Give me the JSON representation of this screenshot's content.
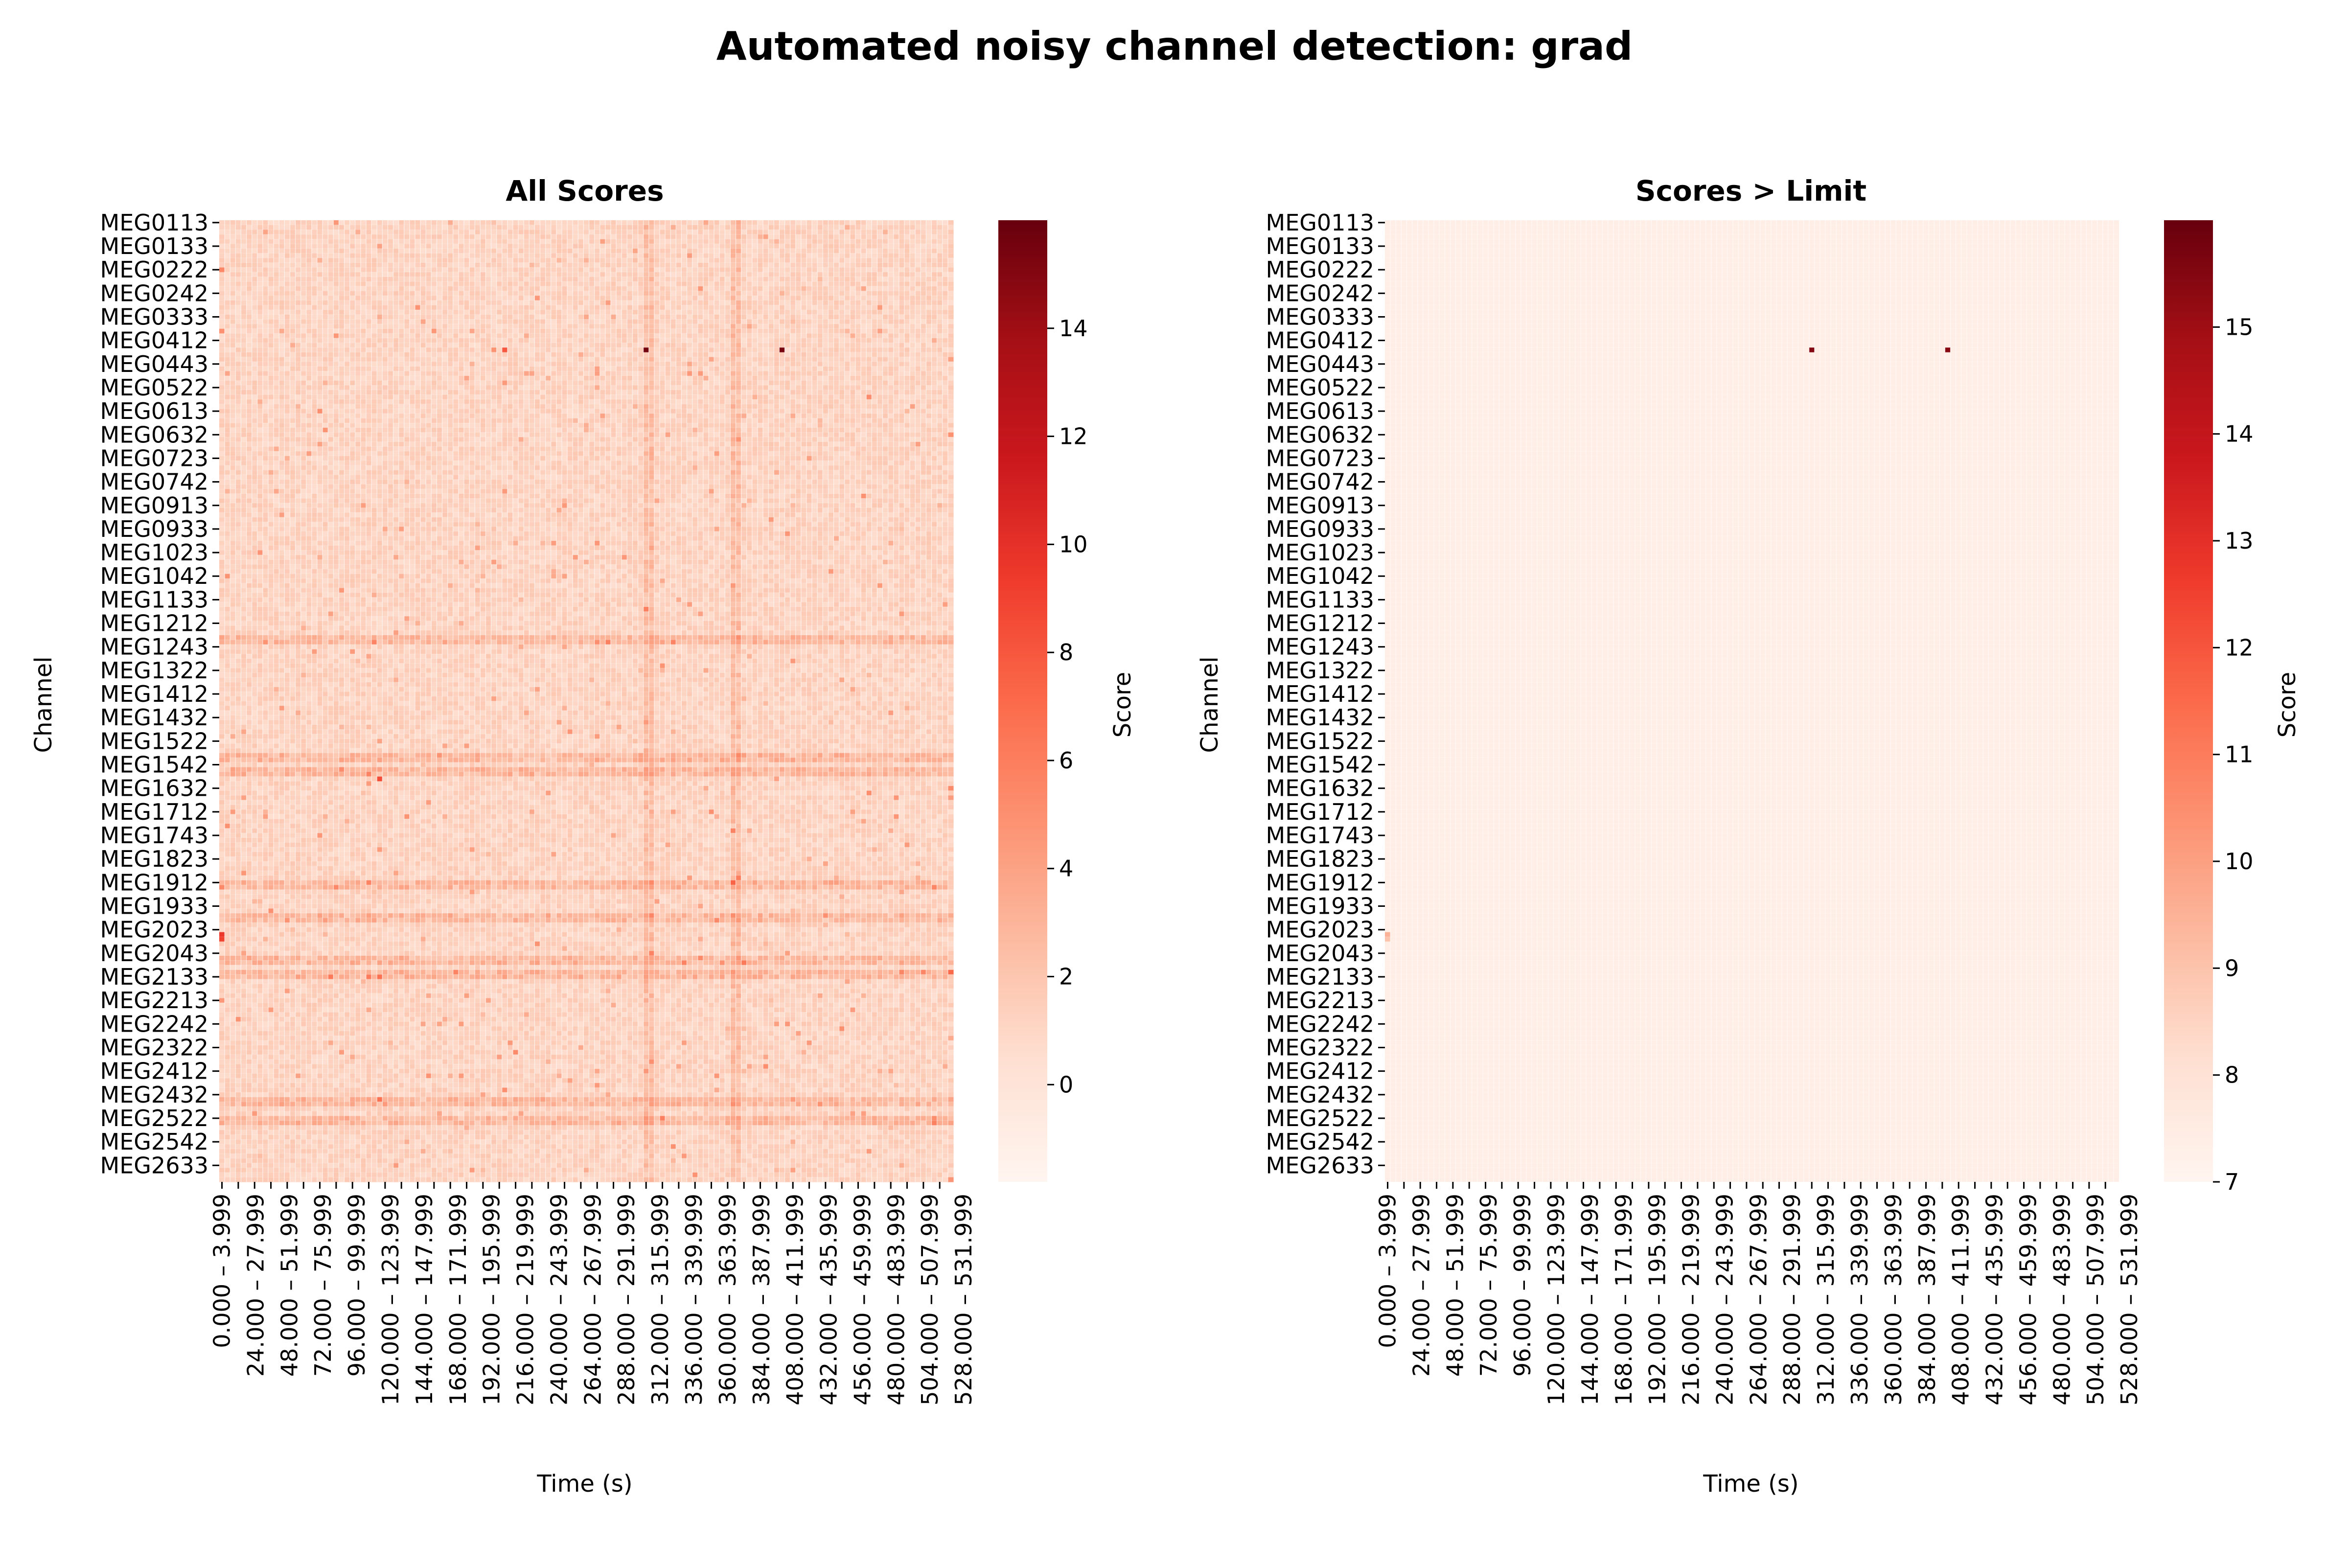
{
  "figure": {
    "title": "Automated noisy channel detection: grad"
  },
  "chart_data": [
    {
      "type": "heatmap",
      "title": "All Scores",
      "xlabel": "Time (s)",
      "ylabel": "Channel",
      "colorbar_label": "Score",
      "colormap": "Reds",
      "vmin": -1.8,
      "vmax": 16,
      "colorbar_ticks": [
        0,
        2,
        4,
        6,
        8,
        10,
        12,
        14
      ],
      "grid": false,
      "n_rows": 204,
      "n_cols": 135,
      "ytick_labels": [
        "MEG0113",
        "MEG0133",
        "MEG0222",
        "MEG0242",
        "MEG0333",
        "MEG0412",
        "MEG0443",
        "MEG0522",
        "MEG0613",
        "MEG0632",
        "MEG0723",
        "MEG0742",
        "MEG0913",
        "MEG0933",
        "MEG1023",
        "MEG1042",
        "MEG1133",
        "MEG1212",
        "MEG1243",
        "MEG1322",
        "MEG1412",
        "MEG1432",
        "MEG1522",
        "MEG1542",
        "MEG1632",
        "MEG1712",
        "MEG1743",
        "MEG1823",
        "MEG1912",
        "MEG1933",
        "MEG2023",
        "MEG2043",
        "MEG2133",
        "MEG2213",
        "MEG2242",
        "MEG2322",
        "MEG2412",
        "MEG2432",
        "MEG2522",
        "MEG2542",
        "MEG2633"
      ],
      "xtick_labels": [
        "0.000 – 3.999",
        "24.000 – 27.999",
        "48.000 – 51.999",
        "72.000 – 75.999",
        "96.000 – 99.999",
        "120.000 – 123.999",
        "144.000 – 147.999",
        "168.000 – 171.999",
        "192.000 – 195.999",
        "216.000 – 219.999",
        "240.000 – 243.999",
        "264.000 – 267.999",
        "288.000 – 291.999",
        "312.000 – 315.999",
        "336.000 – 339.999",
        "360.000 – 363.999",
        "384.000 – 387.999",
        "408.000 – 411.999",
        "432.000 – 435.999",
        "456.000 – 459.999",
        "480.000 – 483.999",
        "504.000 – 507.999",
        "528.000 – 531.999"
      ],
      "background_level": 1.2,
      "hot_cells": [
        {
          "row": 27,
          "col": 78,
          "value": 15.5
        },
        {
          "row": 27,
          "col": 103,
          "value": 15.4
        },
        {
          "row": 27,
          "col": 52,
          "value": 8.0
        },
        {
          "row": 151,
          "col": 0,
          "value": 9.5
        },
        {
          "row": 152,
          "col": 0,
          "value": 9.0
        },
        {
          "row": 10,
          "col": 0,
          "value": 5.5
        },
        {
          "row": 23,
          "col": 0,
          "value": 5.0
        },
        {
          "row": 118,
          "col": 29,
          "value": 8.5
        },
        {
          "row": 32,
          "col": 86,
          "value": 4.5
        },
        {
          "row": 60,
          "col": 63,
          "value": 4.5
        },
        {
          "row": 75,
          "col": 63,
          "value": 4.0
        }
      ],
      "busy_rows": [
        88,
        89,
        113,
        114,
        116,
        117,
        140,
        141,
        147,
        148,
        156,
        157,
        159,
        160,
        186,
        187,
        190,
        191
      ],
      "busy_cols": [
        78,
        79,
        94,
        95
      ]
    },
    {
      "type": "heatmap",
      "title": "Scores > Limit",
      "xlabel": "Time (s)",
      "ylabel": "Channel",
      "colorbar_label": "Score",
      "colormap": "Reds",
      "vmin": 7,
      "vmax": 16,
      "colorbar_ticks": [
        7,
        8,
        9,
        10,
        11,
        12,
        13,
        14,
        15
      ],
      "grid": false,
      "n_rows": 204,
      "n_cols": 135,
      "ytick_labels": [
        "MEG0113",
        "MEG0133",
        "MEG0222",
        "MEG0242",
        "MEG0333",
        "MEG0412",
        "MEG0443",
        "MEG0522",
        "MEG0613",
        "MEG0632",
        "MEG0723",
        "MEG0742",
        "MEG0913",
        "MEG0933",
        "MEG1023",
        "MEG1042",
        "MEG1133",
        "MEG1212",
        "MEG1243",
        "MEG1322",
        "MEG1412",
        "MEG1432",
        "MEG1522",
        "MEG1542",
        "MEG1632",
        "MEG1712",
        "MEG1743",
        "MEG1823",
        "MEG1912",
        "MEG1933",
        "MEG2023",
        "MEG2043",
        "MEG2133",
        "MEG2213",
        "MEG2242",
        "MEG2322",
        "MEG2412",
        "MEG2432",
        "MEG2522",
        "MEG2542",
        "MEG2633"
      ],
      "xtick_labels": [
        "0.000 – 3.999",
        "24.000 – 27.999",
        "48.000 – 51.999",
        "72.000 – 75.999",
        "96.000 – 99.999",
        "120.000 – 123.999",
        "144.000 – 147.999",
        "168.000 – 171.999",
        "192.000 – 195.999",
        "216.000 – 219.999",
        "240.000 – 243.999",
        "264.000 – 267.999",
        "288.000 – 291.999",
        "312.000 – 315.999",
        "336.000 – 339.999",
        "360.000 – 363.999",
        "384.000 – 387.999",
        "408.000 – 411.999",
        "432.000 – 435.999",
        "456.000 – 459.999",
        "480.000 – 483.999",
        "504.000 – 507.999",
        "528.000 – 531.999"
      ],
      "cells": [
        {
          "row": 27,
          "col": 78,
          "value": 15.5
        },
        {
          "row": 27,
          "col": 103,
          "value": 15.4
        },
        {
          "row": 151,
          "col": 0,
          "value": 9.5
        },
        {
          "row": 152,
          "col": 0,
          "value": 9.0
        }
      ]
    }
  ]
}
